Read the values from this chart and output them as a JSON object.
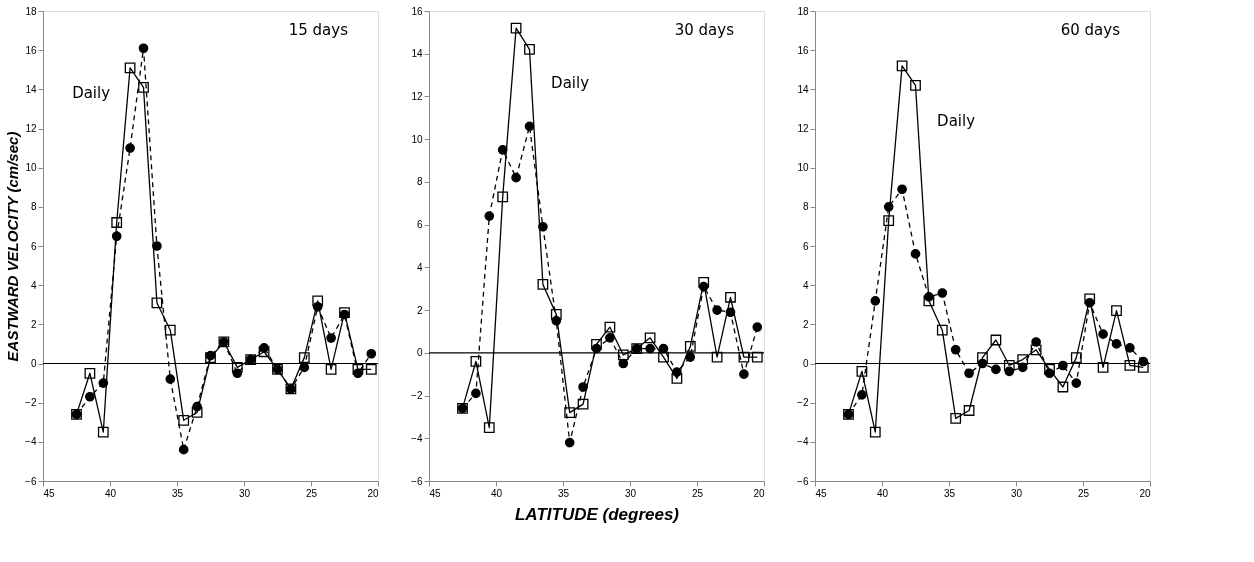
{
  "chart_data": [
    {
      "type": "line",
      "title": "15 days",
      "ylabel": "EASTWARD VELOCITY (cm/sec)",
      "x": [
        42.5,
        41.5,
        40.5,
        39.5,
        38.5,
        37.5,
        36.5,
        35.5,
        34.5,
        33.5,
        32.5,
        31.5,
        30.5,
        29.5,
        28.5,
        27.5,
        26.5,
        25.5,
        24.5,
        23.5,
        22.5,
        21.5,
        20.5
      ],
      "xlim": [
        45,
        20
      ],
      "xticks": [
        45,
        40,
        35,
        30,
        25,
        20
      ],
      "ylim": [
        -6,
        18
      ],
      "yticks": [
        -6,
        -4,
        -2,
        0,
        2,
        4,
        6,
        8,
        10,
        12,
        14,
        16,
        18
      ],
      "grid": false,
      "legend": false,
      "ref_lines": [
        {
          "axis": "y",
          "value": 0
        }
      ],
      "series": [
        {
          "name": "Daily",
          "color": "#000000",
          "marker": "square",
          "line_style": "solid",
          "values": [
            -2.6,
            -0.5,
            -3.5,
            7.2,
            15.1,
            14.1,
            3.1,
            1.7,
            -2.9,
            -2.5,
            0.3,
            1.1,
            -0.2,
            0.2,
            0.6,
            -0.3,
            -1.3,
            0.3,
            3.2,
            -0.3,
            2.6,
            -0.3,
            -0.3
          ]
        },
        {
          "color": "#000000",
          "marker": "circle",
          "line_style": "dashed",
          "values": [
            -2.6,
            -1.7,
            -1.0,
            6.5,
            11.0,
            16.1,
            6.0,
            -0.8,
            -4.4,
            -2.2,
            0.4,
            1.1,
            -0.5,
            0.2,
            0.8,
            -0.3,
            -1.3,
            -0.2,
            2.9,
            1.3,
            2.5,
            -0.5,
            0.5
          ]
        }
      ]
    },
    {
      "type": "line",
      "title": "30 days",
      "xlabel": "LATITUDE (degrees)",
      "x": [
        42.5,
        41.5,
        40.5,
        39.5,
        38.5,
        37.5,
        36.5,
        35.5,
        34.5,
        33.5,
        32.5,
        31.5,
        30.5,
        29.5,
        28.5,
        27.5,
        26.5,
        25.5,
        24.5,
        23.5,
        22.5,
        21.5,
        20.5
      ],
      "xlim": [
        45,
        20
      ],
      "xticks": [
        45,
        40,
        35,
        30,
        25,
        20
      ],
      "ylim": [
        -6,
        16
      ],
      "yticks": [
        -6,
        -4,
        -2,
        0,
        2,
        4,
        6,
        8,
        10,
        12,
        14,
        16
      ],
      "grid": false,
      "legend": false,
      "ref_lines": [
        {
          "axis": "y",
          "value": 0
        }
      ],
      "series": [
        {
          "name": "Daily",
          "color": "#000000",
          "marker": "square",
          "line_style": "solid",
          "values": [
            -2.6,
            -0.4,
            -3.5,
            7.3,
            15.2,
            14.2,
            3.2,
            1.8,
            -2.8,
            -2.4,
            0.4,
            1.2,
            -0.1,
            0.2,
            0.7,
            -0.2,
            -1.2,
            0.3,
            3.3,
            -0.2,
            2.6,
            -0.2,
            -0.2
          ]
        },
        {
          "color": "#000000",
          "marker": "circle",
          "line_style": "dashed",
          "values": [
            -2.6,
            -1.9,
            6.4,
            9.5,
            8.2,
            10.6,
            5.9,
            1.5,
            -4.2,
            -1.6,
            0.2,
            0.7,
            -0.5,
            0.2,
            0.2,
            0.2,
            -0.9,
            -0.2,
            3.1,
            2.0,
            1.9,
            -1.0,
            1.2
          ]
        }
      ]
    },
    {
      "type": "line",
      "title": "60 days",
      "x": [
        42.5,
        41.5,
        40.5,
        39.5,
        38.5,
        37.5,
        36.5,
        35.5,
        34.5,
        33.5,
        32.5,
        31.5,
        30.5,
        29.5,
        28.5,
        27.5,
        26.5,
        25.5,
        24.5,
        23.5,
        22.5,
        21.5,
        20.5
      ],
      "xlim": [
        45,
        20
      ],
      "xticks": [
        45,
        40,
        35,
        30,
        25,
        20
      ],
      "ylim": [
        -6,
        18
      ],
      "yticks": [
        -6,
        -4,
        -2,
        0,
        2,
        4,
        6,
        8,
        10,
        12,
        14,
        16,
        18
      ],
      "grid": false,
      "legend": false,
      "ref_lines": [
        {
          "axis": "y",
          "value": 0
        }
      ],
      "series": [
        {
          "name": "Daily",
          "color": "#000000",
          "marker": "square",
          "line_style": "solid",
          "values": [
            -2.6,
            -0.4,
            -3.5,
            7.3,
            15.2,
            14.2,
            3.2,
            1.7,
            -2.8,
            -2.4,
            0.3,
            1.2,
            -0.1,
            0.2,
            0.7,
            -0.3,
            -1.2,
            0.3,
            3.3,
            -0.2,
            2.7,
            -0.1,
            -0.2
          ]
        },
        {
          "color": "#000000",
          "marker": "circle",
          "line_style": "dashed",
          "values": [
            -2.6,
            -1.6,
            3.2,
            8.0,
            8.9,
            5.6,
            3.4,
            3.6,
            0.7,
            -0.5,
            0.0,
            -0.3,
            -0.4,
            -0.2,
            1.1,
            -0.5,
            -0.1,
            -1.0,
            3.1,
            1.5,
            1.0,
            0.8,
            0.1
          ]
        }
      ]
    }
  ]
}
